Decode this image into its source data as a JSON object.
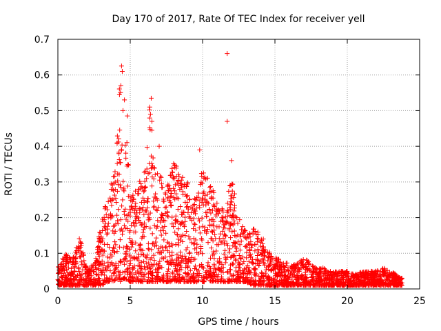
{
  "chart_data": {
    "type": "scatter",
    "title": "Day 170 of 2017, Rate Of TEC Index for receiver yell",
    "xlabel": "GPS time / hours",
    "ylabel": "ROTI / TECUs",
    "xlim": [
      0,
      25
    ],
    "ylim": [
      0,
      0.7
    ],
    "x_ticks": [
      0,
      5,
      10,
      15,
      20,
      25
    ],
    "y_ticks": [
      0,
      0.1,
      0.2,
      0.3,
      0.4,
      0.5,
      0.6,
      0.7
    ],
    "x_tick_labels": [
      "0",
      "5",
      "10",
      "15",
      "20",
      "25"
    ],
    "y_tick_labels": [
      "0",
      "0.1",
      "0.2",
      "0.3",
      "0.4",
      "0.5",
      "0.6",
      "0.7"
    ],
    "grid": true,
    "marker": "+",
    "color": "#ff0000",
    "data_extent_hours": [
      0,
      23.8
    ],
    "envelope": {
      "x": [
        0,
        0.5,
        1.0,
        1.5,
        2.0,
        2.5,
        3.0,
        3.5,
        4.0,
        4.3,
        4.5,
        4.8,
        5.0,
        5.5,
        6.0,
        6.3,
        6.5,
        7.0,
        7.5,
        8.0,
        8.5,
        9.0,
        9.5,
        10.0,
        10.5,
        11.0,
        11.5,
        12.0,
        12.5,
        13.0,
        13.5,
        14.0,
        14.5,
        15.0,
        15.5,
        16.0,
        16.5,
        17.0,
        17.5,
        18.0,
        18.5,
        19.0,
        19.5,
        20.0,
        20.5,
        21.0,
        21.5,
        22.0,
        22.5,
        23.0,
        23.8
      ],
      "upper": [
        0.06,
        0.1,
        0.08,
        0.15,
        0.06,
        0.07,
        0.19,
        0.27,
        0.36,
        0.6,
        0.35,
        0.48,
        0.25,
        0.3,
        0.33,
        0.52,
        0.38,
        0.32,
        0.3,
        0.36,
        0.32,
        0.3,
        0.25,
        0.34,
        0.3,
        0.25,
        0.23,
        0.32,
        0.2,
        0.16,
        0.17,
        0.16,
        0.11,
        0.09,
        0.08,
        0.07,
        0.07,
        0.09,
        0.07,
        0.06,
        0.06,
        0.05,
        0.05,
        0.05,
        0.04,
        0.05,
        0.05,
        0.05,
        0.06,
        0.05,
        0.03
      ],
      "lower": [
        0.01,
        0.01,
        0.01,
        0.01,
        0.01,
        0.01,
        0.01,
        0.02,
        0.02,
        0.02,
        0.03,
        0.02,
        0.02,
        0.02,
        0.02,
        0.02,
        0.02,
        0.02,
        0.02,
        0.02,
        0.02,
        0.02,
        0.02,
        0.02,
        0.02,
        0.02,
        0.02,
        0.02,
        0.02,
        0.02,
        0.01,
        0.01,
        0.01,
        0.01,
        0.01,
        0.01,
        0.01,
        0.01,
        0.01,
        0.01,
        0.01,
        0.01,
        0.01,
        0.01,
        0.01,
        0.01,
        0.01,
        0.01,
        0.01,
        0.01,
        0.01
      ]
    },
    "outliers": [
      {
        "x": 4.4,
        "y": 0.625
      },
      {
        "x": 4.45,
        "y": 0.61
      },
      {
        "x": 4.35,
        "y": 0.57
      },
      {
        "x": 4.6,
        "y": 0.53
      },
      {
        "x": 4.8,
        "y": 0.485
      },
      {
        "x": 4.5,
        "y": 0.5
      },
      {
        "x": 6.45,
        "y": 0.535
      },
      {
        "x": 6.35,
        "y": 0.51
      },
      {
        "x": 6.4,
        "y": 0.49
      },
      {
        "x": 6.5,
        "y": 0.47
      },
      {
        "x": 6.5,
        "y": 0.445
      },
      {
        "x": 7.0,
        "y": 0.4
      },
      {
        "x": 9.8,
        "y": 0.39
      },
      {
        "x": 11.7,
        "y": 0.66
      },
      {
        "x": 11.7,
        "y": 0.47
      },
      {
        "x": 12.0,
        "y": 0.36
      }
    ]
  }
}
